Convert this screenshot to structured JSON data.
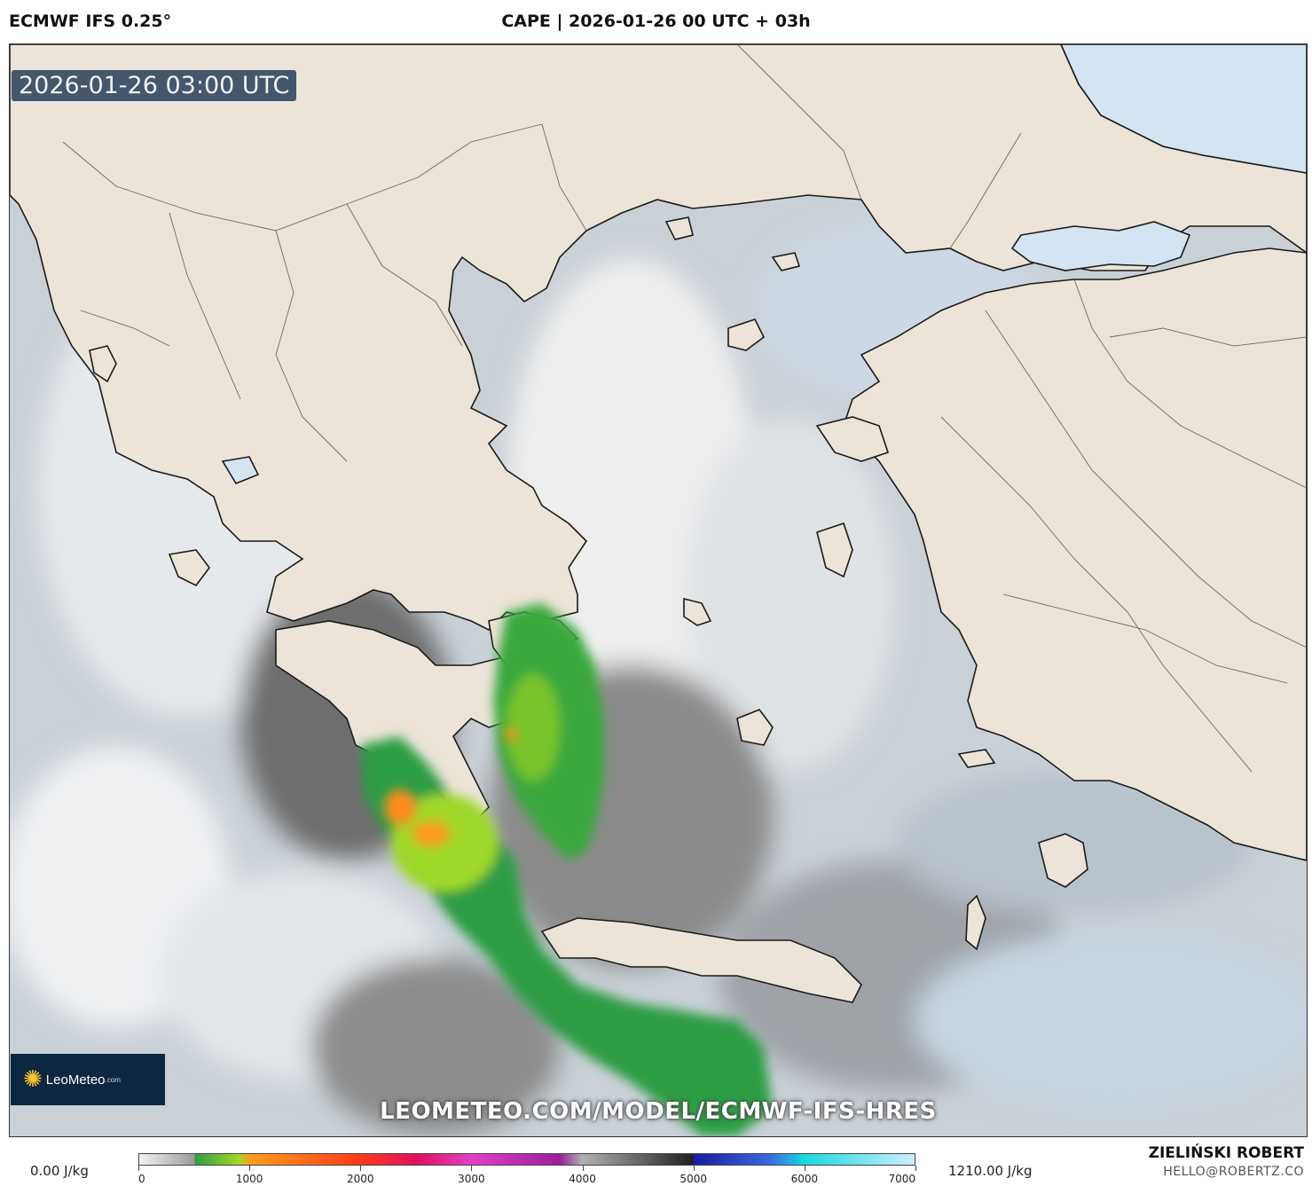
{
  "header": {
    "model": "ECMWF IFS 0.25°",
    "title": "CAPE | 2026-01-26 00 UTC + 03h"
  },
  "map": {
    "valid_time": "2026-01-26 03:00 UTC",
    "watermark_url": "LEOMETEO.COM/MODEL/ECMWF-IFS-HRES",
    "logo_text": "LeoMeteo",
    "logo_suffix": ".com",
    "colors": {
      "sea": "#d4e4f2",
      "land": "#ece4d8",
      "cape_low": "#3ca43c",
      "cape_mid": "#9fd829",
      "cape_high": "#ff8c1a"
    }
  },
  "legend": {
    "min_label": "0.00 J/kg",
    "max_label": "1210.00 J/kg",
    "ticks": [
      "0",
      "1000",
      "2000",
      "3000",
      "4000",
      "5000",
      "6000",
      "7000"
    ],
    "tick_values": [
      0,
      1000,
      2000,
      3000,
      4000,
      5000,
      6000,
      7000
    ],
    "range": [
      0,
      7000
    ],
    "stops": [
      {
        "value": 0,
        "color": "#f4f4f4"
      },
      {
        "value": 500,
        "color": "#9a9a9a"
      },
      {
        "value": 500,
        "color": "#2f9e44"
      },
      {
        "value": 900,
        "color": "#a2d62b"
      },
      {
        "value": 1000,
        "color": "#ff9e1a"
      },
      {
        "value": 2000,
        "color": "#ff3a1a"
      },
      {
        "value": 2500,
        "color": "#e0105c"
      },
      {
        "value": 3000,
        "color": "#e040c8"
      },
      {
        "value": 3800,
        "color": "#9a209a"
      },
      {
        "value": 4000,
        "color": "#b0b0b0"
      },
      {
        "value": 5000,
        "color": "#202020"
      },
      {
        "value": 5000,
        "color": "#1a1aa0"
      },
      {
        "value": 5700,
        "color": "#3a6ae0"
      },
      {
        "value": 6000,
        "color": "#18d8e0"
      },
      {
        "value": 7000,
        "color": "#cfeeff"
      }
    ]
  },
  "credit": {
    "author": "ZIELIŃSKI ROBERT",
    "email": "HELLO@ROBERTZ.CO"
  }
}
